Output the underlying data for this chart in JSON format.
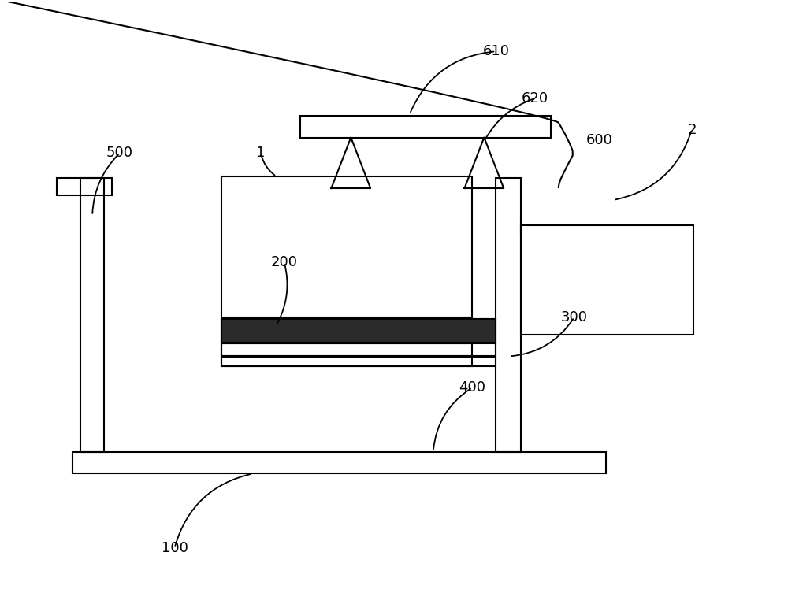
{
  "bg_color": "#ffffff",
  "lc": "#000000",
  "lw": 1.5,
  "figsize": [
    10.0,
    7.53
  ],
  "dpi": 100
}
